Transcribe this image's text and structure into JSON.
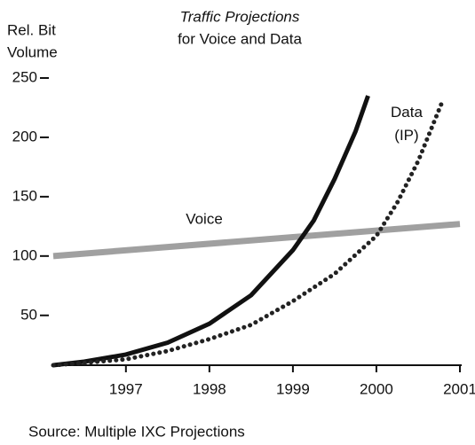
{
  "chart_data": {
    "type": "line",
    "title": [
      "Traffic Projections",
      "for Voice and Data"
    ],
    "y_label": [
      "Rel. Bit",
      "Volume"
    ],
    "source": "Source: Multiple IXC Projections",
    "xlim": [
      1996.13,
      2001
    ],
    "xticks": [
      1997,
      1998,
      1999,
      2000,
      2001
    ],
    "ylim": [
      8,
      250
    ],
    "yticks": [
      50,
      100,
      150,
      200,
      250
    ],
    "series": [
      {
        "name": "Voice",
        "color": "#a0a0a0",
        "style": "solid",
        "x": [
          1996.13,
          2001
        ],
        "values": [
          100,
          127
        ]
      },
      {
        "color": "#111111",
        "style": "solid",
        "x": [
          1996.13,
          1996.5,
          1997,
          1997.5,
          1998,
          1998.5,
          1999,
          1999.25,
          1999.5,
          1999.75,
          1999.9
        ],
        "values": [
          8,
          11,
          17,
          27,
          43,
          67,
          105,
          130,
          165,
          205,
          235
        ]
      },
      {
        "name": "Data (IP)",
        "color": "#222222",
        "style": "dotted",
        "x": [
          1996.13,
          1996.5,
          1997,
          1997.5,
          1998,
          1998.5,
          1999,
          1999.5,
          2000,
          2000.25,
          2000.5,
          2000.8
        ],
        "values": [
          8,
          10,
          13,
          20,
          30,
          42,
          62,
          85,
          117,
          145,
          180,
          232
        ]
      }
    ]
  }
}
